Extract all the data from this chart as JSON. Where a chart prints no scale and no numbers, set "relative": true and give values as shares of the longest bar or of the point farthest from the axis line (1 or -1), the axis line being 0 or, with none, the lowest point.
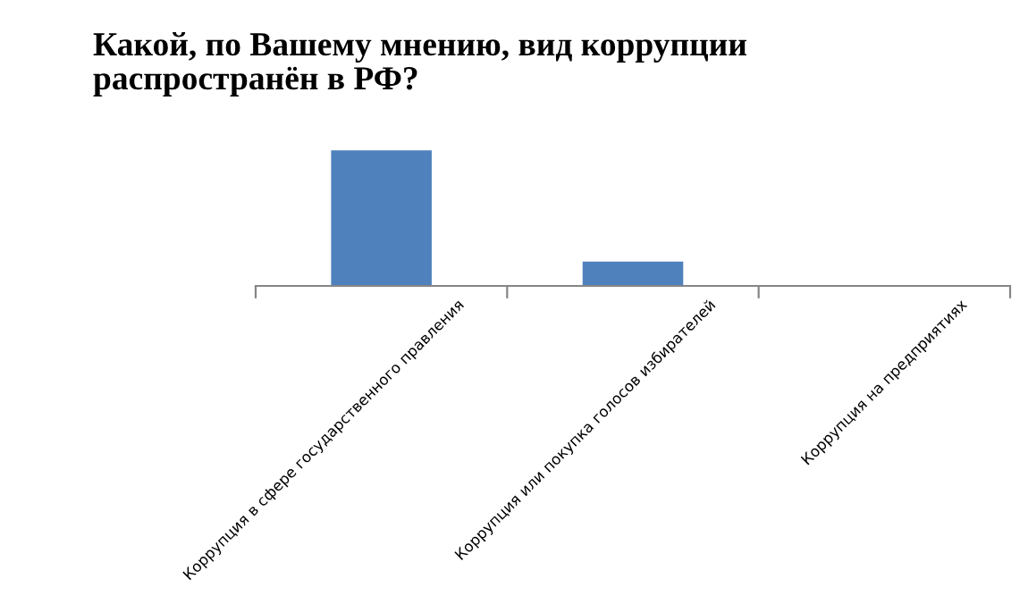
{
  "chart_data": {
    "type": "bar",
    "title": "Какой, по Вашему мнению, вид коррупции\nраспространён в РФ?",
    "categories": [
      "Коррупция в сфере государственного правления",
      "Коррупция или покупка голосов избирателей",
      "Коррупция на предприятиях"
    ],
    "values": [
      1,
      0.18,
      0
    ],
    "color": "#4f81bd",
    "relative": true,
    "grid": false,
    "legend": false
  }
}
